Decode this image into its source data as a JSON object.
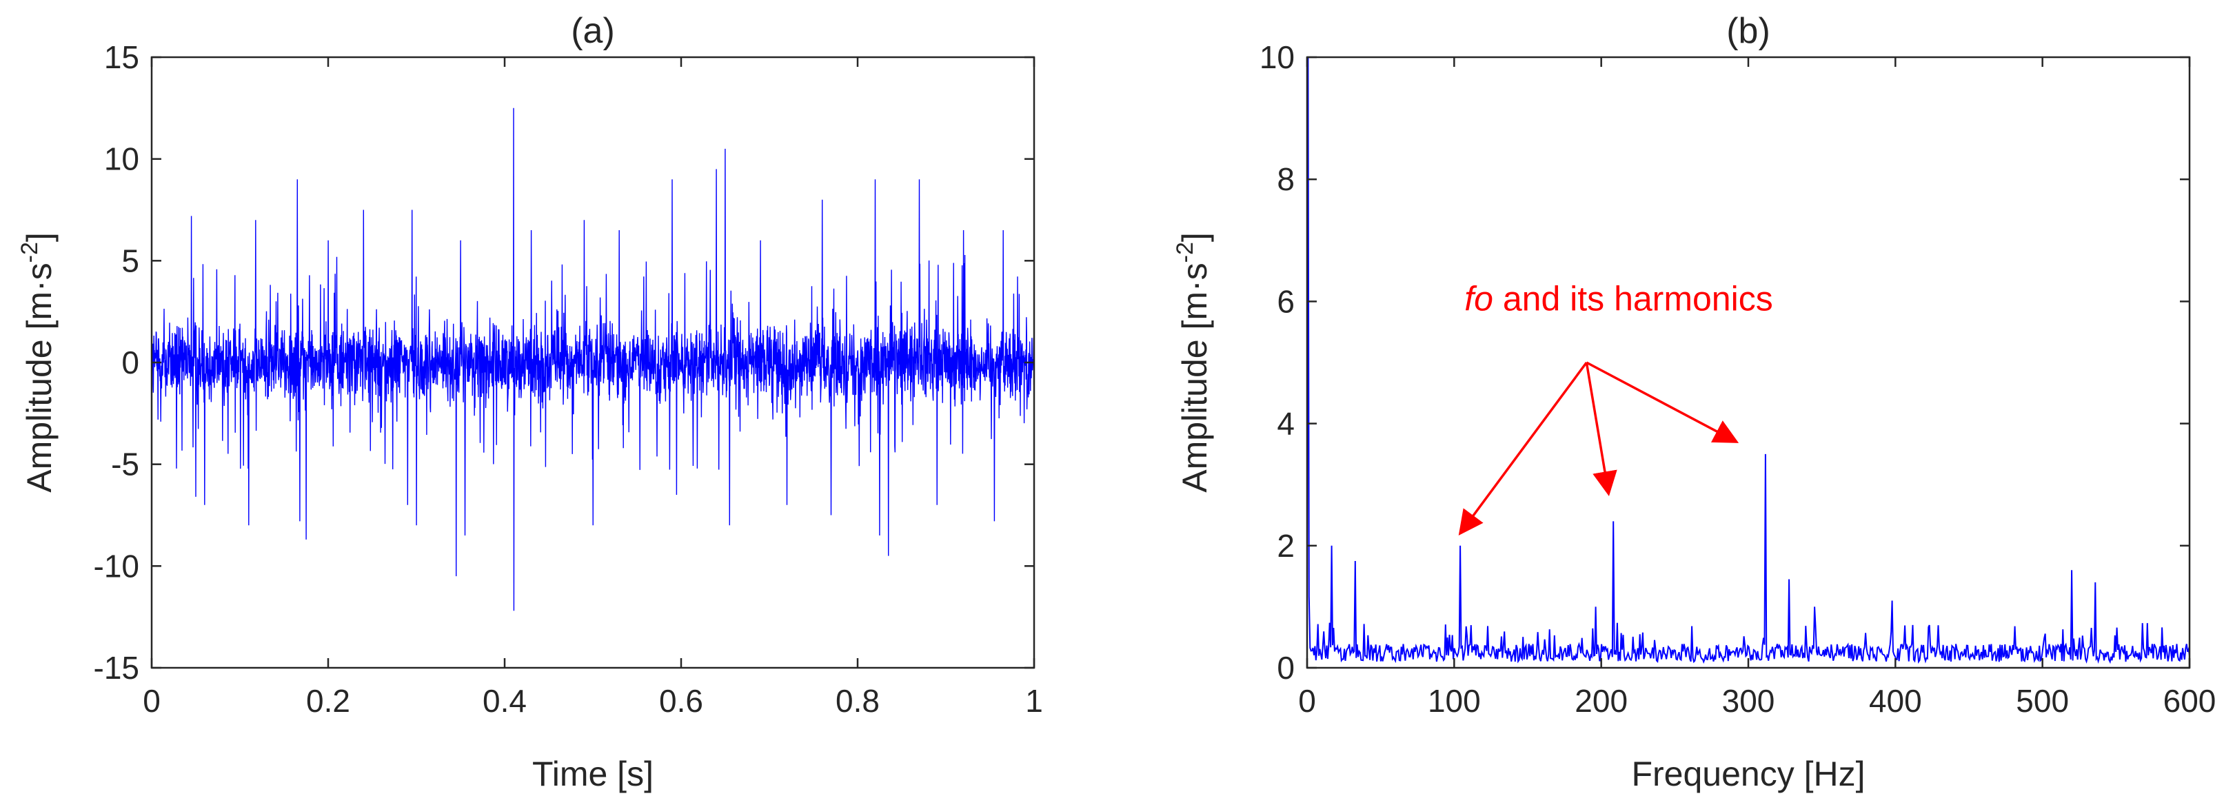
{
  "chart_data": [
    {
      "type": "line",
      "title": "(a)",
      "xlabel": "Time [s]",
      "ylabel_main": "Amplitude [m·s",
      "ylabel_sup": "-2",
      "ylabel_end": "]",
      "xlim": [
        0,
        1
      ],
      "ylim": [
        -15,
        15
      ],
      "xticks": [
        0,
        0.2,
        0.4,
        0.6,
        0.8,
        1
      ],
      "xtick_labels": [
        "0",
        "0.2",
        "0.4",
        "0.6",
        "0.8",
        "1"
      ],
      "yticks": [
        -15,
        -10,
        -5,
        0,
        5,
        10,
        15
      ],
      "ytick_labels": [
        "-15",
        "-10",
        "-5",
        "0",
        "5",
        "10",
        "15"
      ],
      "grid": false,
      "line_color": "#0000ff",
      "noise_band": 2.6,
      "spikes": [
        {
          "x": 0.045,
          "y": 7.2
        },
        {
          "x": 0.05,
          "y": -6.6
        },
        {
          "x": 0.06,
          "y": -7.0
        },
        {
          "x": 0.11,
          "y": -8.0
        },
        {
          "x": 0.118,
          "y": 7.0
        },
        {
          "x": 0.165,
          "y": 9.0
        },
        {
          "x": 0.168,
          "y": -7.8
        },
        {
          "x": 0.175,
          "y": -8.7
        },
        {
          "x": 0.2,
          "y": 6.0
        },
        {
          "x": 0.24,
          "y": 7.5
        },
        {
          "x": 0.29,
          "y": -7.0
        },
        {
          "x": 0.295,
          "y": 7.5
        },
        {
          "x": 0.3,
          "y": -8.0
        },
        {
          "x": 0.345,
          "y": -10.5
        },
        {
          "x": 0.35,
          "y": 6.0
        },
        {
          "x": 0.355,
          "y": -8.5
        },
        {
          "x": 0.41,
          "y": 12.5
        },
        {
          "x": 0.41,
          "y": -12.2
        },
        {
          "x": 0.43,
          "y": 6.5
        },
        {
          "x": 0.49,
          "y": 7.0
        },
        {
          "x": 0.5,
          "y": -8.0
        },
        {
          "x": 0.53,
          "y": 6.5
        },
        {
          "x": 0.59,
          "y": 9.0
        },
        {
          "x": 0.595,
          "y": -6.5
        },
        {
          "x": 0.64,
          "y": 9.5
        },
        {
          "x": 0.65,
          "y": 10.5
        },
        {
          "x": 0.655,
          "y": -8.0
        },
        {
          "x": 0.69,
          "y": 6.0
        },
        {
          "x": 0.72,
          "y": -7.0
        },
        {
          "x": 0.76,
          "y": 8.0
        },
        {
          "x": 0.77,
          "y": -7.5
        },
        {
          "x": 0.82,
          "y": 9.0
        },
        {
          "x": 0.825,
          "y": -8.5
        },
        {
          "x": 0.835,
          "y": -9.5
        },
        {
          "x": 0.87,
          "y": 9.0
        },
        {
          "x": 0.89,
          "y": -7.0
        },
        {
          "x": 0.92,
          "y": 6.5
        },
        {
          "x": 0.955,
          "y": -7.8
        },
        {
          "x": 0.965,
          "y": 6.5
        }
      ]
    },
    {
      "type": "line",
      "title": "(b)",
      "xlabel": "Frequency [Hz]",
      "ylabel_main": "Amplitude [m·s",
      "ylabel_sup": "-2",
      "ylabel_end": "]",
      "xlim": [
        0,
        600
      ],
      "ylim": [
        0,
        10
      ],
      "xticks": [
        0,
        100,
        200,
        300,
        400,
        500,
        600
      ],
      "xtick_labels": [
        "0",
        "100",
        "200",
        "300",
        "400",
        "500",
        "600"
      ],
      "yticks": [
        0,
        2,
        4,
        6,
        8,
        10
      ],
      "ytick_labels": [
        "0",
        "2",
        "4",
        "6",
        "8",
        "10"
      ],
      "grid": false,
      "line_color": "#0000ff",
      "baseline": 0.28,
      "peaks": [
        {
          "x": 1,
          "y": 10.0
        },
        {
          "x": 17,
          "y": 2.0
        },
        {
          "x": 33,
          "y": 1.75
        },
        {
          "x": 104,
          "y": 2.0
        },
        {
          "x": 196,
          "y": 1.0
        },
        {
          "x": 208,
          "y": 2.4
        },
        {
          "x": 226,
          "y": 0.55
        },
        {
          "x": 312,
          "y": 3.5
        },
        {
          "x": 328,
          "y": 1.45
        },
        {
          "x": 345,
          "y": 1.0
        },
        {
          "x": 398,
          "y": 1.1
        },
        {
          "x": 423,
          "y": 0.7
        },
        {
          "x": 520,
          "y": 1.6
        },
        {
          "x": 536,
          "y": 1.4
        }
      ],
      "annotation": {
        "text_italic": "fo",
        "text_rest": " and its harmonics",
        "color": "#ff0000",
        "origin": {
          "x": 190,
          "y": 5.0
        },
        "targets": [
          {
            "x": 104,
            "y": 2.2
          },
          {
            "x": 205,
            "y": 2.85
          },
          {
            "x": 292,
            "y": 3.7
          }
        ],
        "text_pos": {
          "x": 107,
          "y": 5.85
        }
      }
    }
  ]
}
